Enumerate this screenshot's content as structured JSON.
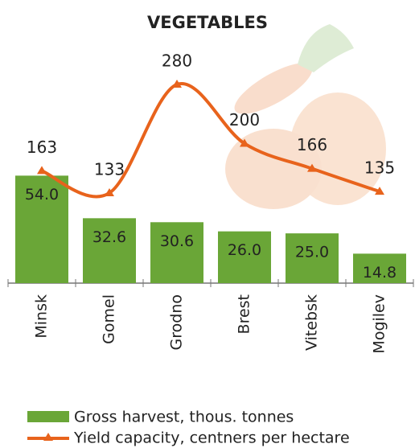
{
  "chart_data": {
    "type": "combo",
    "title": "VEGETABLES",
    "categories": [
      "Minsk",
      "Gomel",
      "Grodno",
      "Brest",
      "Vitebsk",
      "Mogilev"
    ],
    "series": [
      {
        "name": "Gross harvest, thous. tonnes",
        "type": "bar",
        "color": "#6aa637",
        "values": [
          54.0,
          32.6,
          30.6,
          26.0,
          25.0,
          14.8
        ],
        "value_labels": [
          "54.0",
          "32.6",
          "30.6",
          "26.0",
          "25.0",
          "14.8"
        ]
      },
      {
        "name": "Yield capacity, centners per hectare",
        "type": "line",
        "color": "#e8631c",
        "axis": "y2",
        "values": [
          163,
          133,
          280,
          200,
          166,
          135
        ]
      }
    ],
    "ylim": [
      0,
      118
    ],
    "y2lim": [
      11,
      329
    ]
  }
}
